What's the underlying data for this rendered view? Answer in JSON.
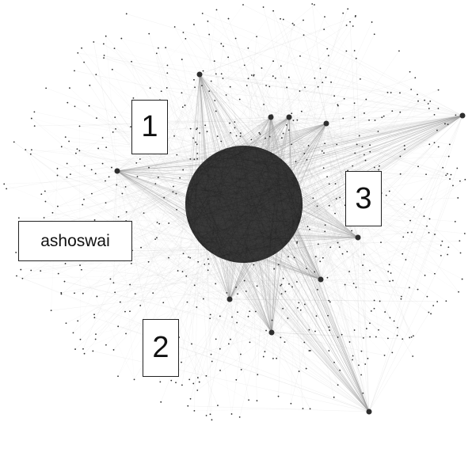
{
  "diagram": {
    "type": "network-graph",
    "labels": {
      "one": "1",
      "two": "2",
      "three": "3",
      "name": "ashoswai"
    },
    "colors": {
      "background": "#ffffff",
      "edge": "#9a9a9a",
      "node": "#2e2e2e",
      "core": "#3a3a3a"
    }
  }
}
